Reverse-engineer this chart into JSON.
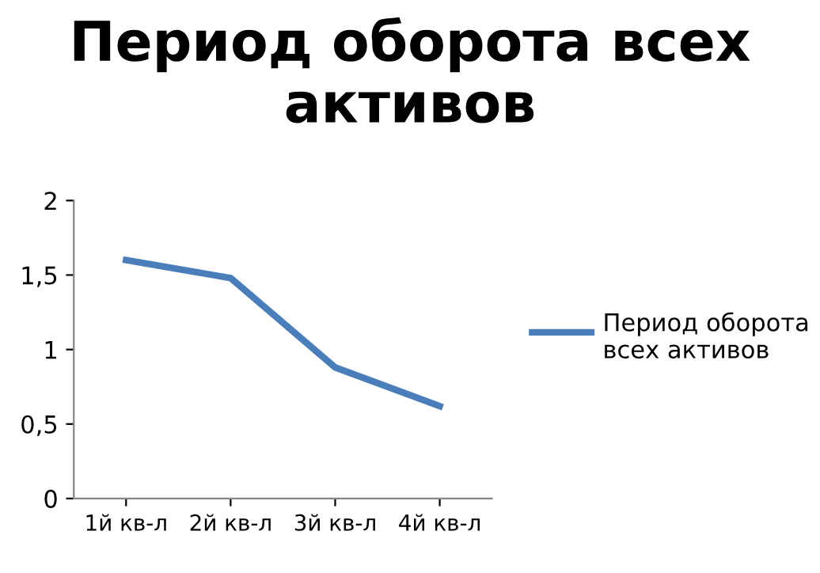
{
  "chart_data": {
    "type": "line",
    "title": "Период оборота всех активов",
    "categories": [
      "1й кв-л",
      "2й кв-л",
      "3й кв-л",
      "4й кв-л"
    ],
    "series": [
      {
        "name": "Период оборота всех активов",
        "color": "#4a7ebb",
        "values": [
          1.6,
          1.48,
          0.88,
          0.62
        ]
      }
    ],
    "ylim": [
      0,
      2
    ],
    "yticks": [
      0,
      {
        "value": 0.5,
        "label": "0,5"
      },
      1,
      {
        "value": 1.5,
        "label": "1,5"
      },
      2
    ],
    "grid": false,
    "legend": "right",
    "marker": "none",
    "line_style": "solid"
  }
}
